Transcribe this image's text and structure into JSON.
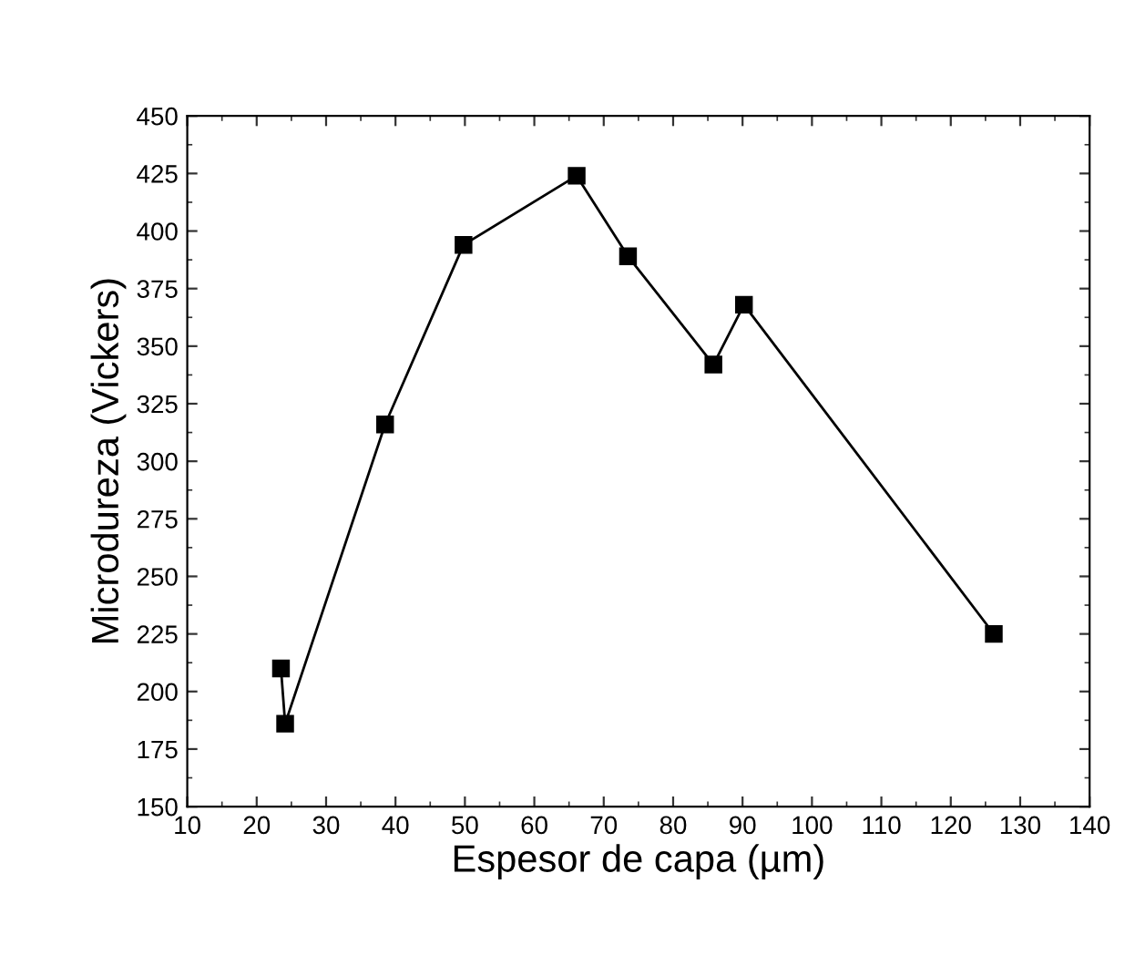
{
  "chart_data": {
    "type": "line",
    "xlabel": "Espesor de capa (µm)",
    "ylabel": "Microdureza (Vickers)",
    "x": [
      23.5,
      24.1,
      38.5,
      49.8,
      66.1,
      73.5,
      85.8,
      90.2,
      126.2
    ],
    "series": [
      {
        "color": "#000000",
        "values": [
          210,
          186,
          316,
          394,
          424,
          389,
          342,
          368,
          225
        ]
      }
    ],
    "marker": "square",
    "line_style": "solid",
    "grid": false,
    "legend": false,
    "xlim": [
      10,
      140
    ],
    "xticks": [
      10,
      20,
      30,
      40,
      50,
      60,
      70,
      80,
      90,
      100,
      110,
      120,
      130,
      140
    ],
    "ylim": [
      150,
      450
    ],
    "yticks": [
      150,
      175,
      200,
      225,
      250,
      275,
      300,
      325,
      350,
      375,
      400,
      425,
      450
    ]
  }
}
